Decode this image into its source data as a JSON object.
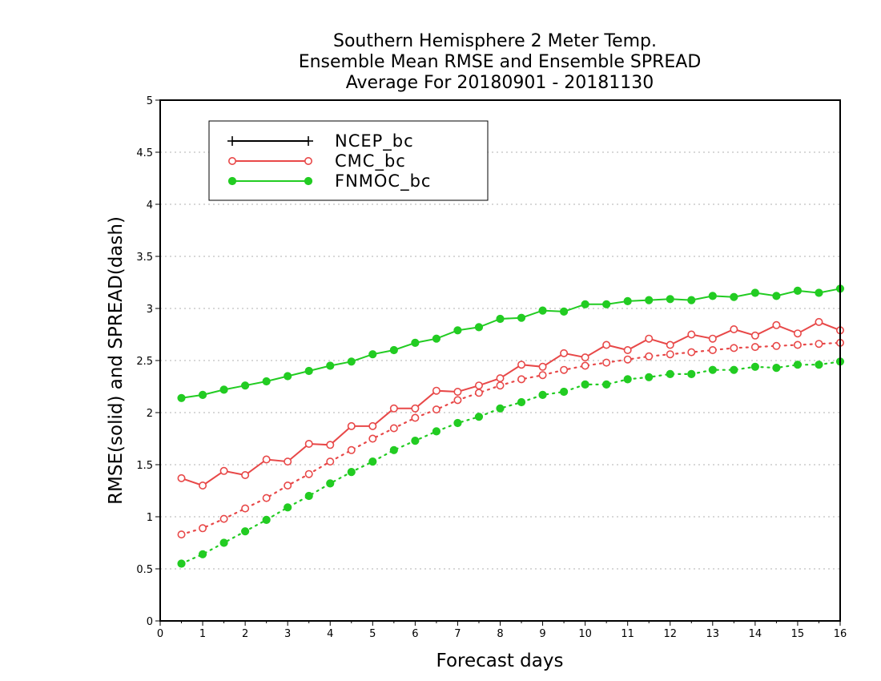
{
  "chart_data": {
    "type": "line",
    "title": [
      "Southern Hemisphere 2 Meter Temp.",
      "Ensemble Mean RMSE and Ensemble SPREAD",
      "Average For 20180901 - 20181130"
    ],
    "xlabel": "Forecast days",
    "ylabel": "RMSE(solid) and SPREAD(dash)",
    "xlim": [
      0,
      16
    ],
    "ylim": [
      0,
      5
    ],
    "xticks": [
      "0",
      "1",
      "2",
      "3",
      "4",
      "5",
      "6",
      "7",
      "8",
      "9",
      "10",
      "11",
      "12",
      "13",
      "14",
      "15",
      "16"
    ],
    "yticks": [
      "0",
      "0.5",
      "1",
      "1.5",
      "2",
      "2.5",
      "3",
      "3.5",
      "4",
      "4.5",
      "5"
    ],
    "grid": "horizontal dotted",
    "legend_position": "top-left",
    "x": [
      0.5,
      1,
      1.5,
      2,
      2.5,
      3,
      3.5,
      4,
      4.5,
      5,
      5.5,
      6,
      6.5,
      7,
      7.5,
      8,
      8.5,
      9,
      9.5,
      10,
      10.5,
      11,
      11.5,
      12,
      12.5,
      13,
      13.5,
      14,
      14.5,
      15,
      15.5,
      16
    ],
    "series": [
      {
        "name": "NCEP_bc",
        "color": "#000000",
        "marker": "plus",
        "rmse": [],
        "spread": []
      },
      {
        "name": "CMC_bc",
        "color": "#e84848",
        "marker": "open-circle",
        "rmse": [
          1.37,
          1.3,
          1.44,
          1.4,
          1.55,
          1.53,
          1.7,
          1.69,
          1.87,
          1.87,
          2.04,
          2.04,
          2.21,
          2.2,
          2.26,
          2.33,
          2.46,
          2.44,
          2.57,
          2.53,
          2.65,
          2.6,
          2.71,
          2.65,
          2.75,
          2.71,
          2.8,
          2.74,
          2.84,
          2.76,
          2.87,
          2.79
        ],
        "spread": [
          0.83,
          0.89,
          0.98,
          1.08,
          1.18,
          1.3,
          1.41,
          1.53,
          1.64,
          1.75,
          1.85,
          1.95,
          2.03,
          2.12,
          2.19,
          2.26,
          2.32,
          2.36,
          2.41,
          2.45,
          2.48,
          2.51,
          2.54,
          2.56,
          2.58,
          2.6,
          2.62,
          2.63,
          2.64,
          2.65,
          2.66,
          2.67
        ]
      },
      {
        "name": "FNMOC_bc",
        "color": "#22cc22",
        "marker": "filled-circle",
        "rmse": [
          2.14,
          2.17,
          2.22,
          2.26,
          2.3,
          2.35,
          2.4,
          2.45,
          2.49,
          2.56,
          2.6,
          2.67,
          2.71,
          2.79,
          2.82,
          2.9,
          2.91,
          2.98,
          2.97,
          3.04,
          3.04,
          3.07,
          3.08,
          3.09,
          3.08,
          3.12,
          3.11,
          3.15,
          3.12,
          3.17,
          3.15,
          3.19
        ],
        "spread": [
          0.55,
          0.64,
          0.75,
          0.86,
          0.97,
          1.09,
          1.2,
          1.32,
          1.43,
          1.53,
          1.64,
          1.73,
          1.82,
          1.9,
          1.96,
          2.04,
          2.1,
          2.17,
          2.2,
          2.27,
          2.27,
          2.32,
          2.34,
          2.37,
          2.37,
          2.41,
          2.41,
          2.44,
          2.43,
          2.46,
          2.46,
          2.49
        ]
      }
    ]
  }
}
